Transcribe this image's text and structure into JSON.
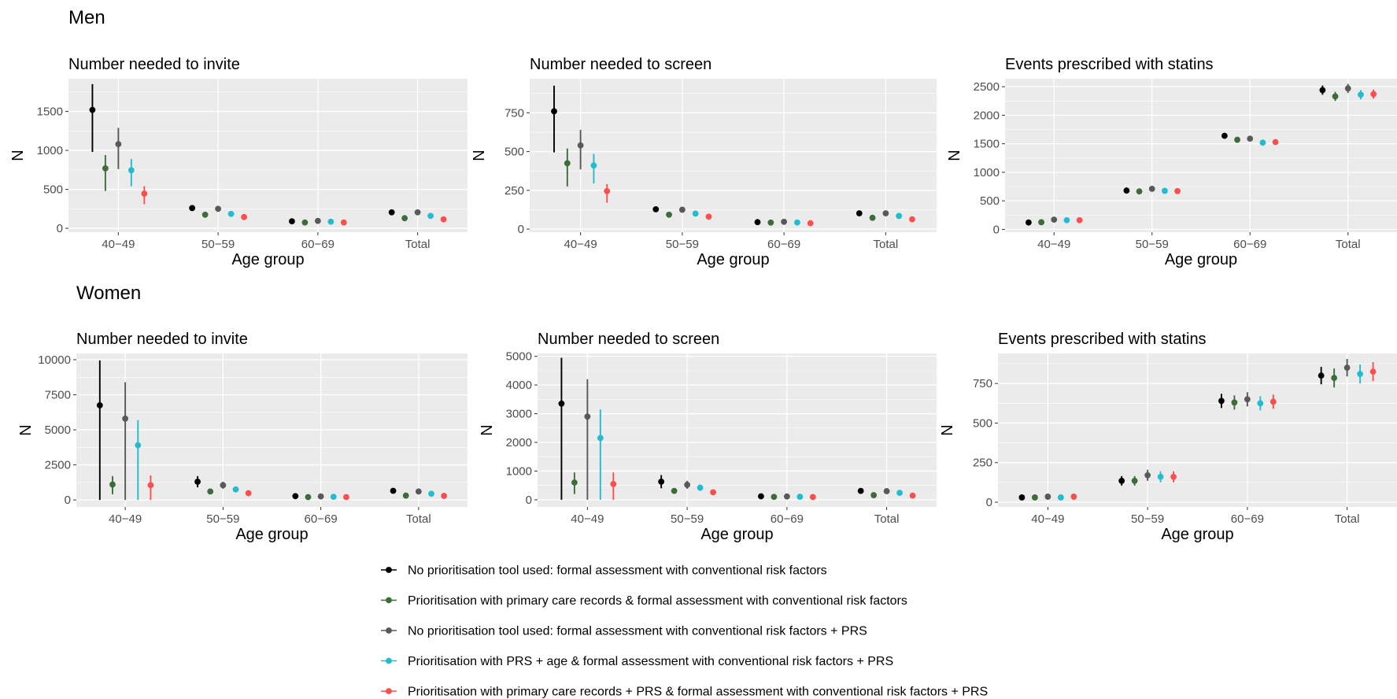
{
  "figure": {
    "sections": [
      {
        "title": "Men",
        "panels": [
          {
            "title": "Number needed to invite",
            "ylabel": "N",
            "xlabel": "Age group"
          },
          {
            "title": "Number needed to screen",
            "ylabel": "N",
            "xlabel": "Age group"
          },
          {
            "title": "Events prescribed with statins",
            "ylabel": "N",
            "xlabel": "Age group"
          }
        ]
      },
      {
        "title": "Women",
        "panels": [
          {
            "title": "Number needed to invite",
            "ylabel": "N",
            "xlabel": "Age group"
          },
          {
            "title": "Number needed to screen",
            "ylabel": "N",
            "xlabel": "Age group"
          },
          {
            "title": "Events prescribed with statins",
            "ylabel": "N",
            "xlabel": "Age group"
          }
        ]
      }
    ],
    "colors": {
      "panel_bg": "#ebebeb",
      "grid": "#ffffff",
      "series": [
        "#000000",
        "#3e6b3a",
        "#595959",
        "#23bccf",
        "#f8504d"
      ]
    },
    "legend": [
      "No prioritisation tool used: formal assessment with conventional risk factors",
      "Prioritisation with primary care records  & formal assessment with conventional risk factors",
      "No prioritisation tool used: formal assessment with conventional risk factors + PRS",
      "Prioritisation with PRS + age  & formal assessment with conventional risk factors + PRS",
      "Prioritisation with primary care records + PRS & formal assessment with conventional risk factors + PRS"
    ]
  },
  "chart_data": [
    {
      "type": "pointrange",
      "section": "Men",
      "title": "Number needed to invite",
      "xlabel": "Age group",
      "ylabel": "N",
      "categories": [
        "40−49",
        "50−59",
        "60−69",
        "Total"
      ],
      "ylim": [
        -50,
        1920
      ],
      "yticks": [
        0,
        500,
        1000,
        1500
      ],
      "series": [
        {
          "values": [
            1520,
            260,
            90,
            205
          ],
          "lower": [
            980,
            240,
            82,
            190
          ],
          "upper": [
            1850,
            280,
            98,
            220
          ]
        },
        {
          "values": [
            770,
            175,
            75,
            130
          ],
          "lower": [
            480,
            165,
            70,
            122
          ],
          "upper": [
            940,
            185,
            80,
            138
          ]
        },
        {
          "values": [
            1080,
            250,
            95,
            205
          ],
          "lower": [
            760,
            230,
            88,
            190
          ],
          "upper": [
            1290,
            270,
            102,
            220
          ]
        },
        {
          "values": [
            745,
            185,
            85,
            160
          ],
          "lower": [
            540,
            172,
            78,
            150
          ],
          "upper": [
            890,
            198,
            92,
            170
          ]
        },
        {
          "values": [
            445,
            145,
            75,
            115
          ],
          "lower": [
            310,
            135,
            70,
            108
          ],
          "upper": [
            540,
            155,
            80,
            122
          ]
        }
      ]
    },
    {
      "type": "pointrange",
      "section": "Men",
      "title": "Number needed to screen",
      "xlabel": "Age group",
      "ylabel": "N",
      "categories": [
        "40−49",
        "50−59",
        "60−69",
        "Total"
      ],
      "ylim": [
        -20,
        970
      ],
      "yticks": [
        0,
        250,
        500,
        750
      ],
      "series": [
        {
          "values": [
            760,
            128,
            45,
            102
          ],
          "lower": [
            495,
            120,
            41,
            95
          ],
          "upper": [
            925,
            136,
            49,
            109
          ]
        },
        {
          "values": [
            425,
            93,
            42,
            73
          ],
          "lower": [
            275,
            87,
            39,
            68
          ],
          "upper": [
            520,
            99,
            45,
            78
          ]
        },
        {
          "values": [
            540,
            125,
            47,
            102
          ],
          "lower": [
            385,
            115,
            43,
            95
          ],
          "upper": [
            640,
            135,
            51,
            109
          ]
        },
        {
          "values": [
            410,
            100,
            43,
            85
          ],
          "lower": [
            295,
            93,
            40,
            79
          ],
          "upper": [
            485,
            107,
            46,
            91
          ]
        },
        {
          "values": [
            245,
            80,
            38,
            63
          ],
          "lower": [
            170,
            74,
            35,
            58
          ],
          "upper": [
            290,
            86,
            41,
            68
          ]
        }
      ]
    },
    {
      "type": "pointrange",
      "section": "Men",
      "title": "Events prescribed with statins",
      "xlabel": "Age group",
      "ylabel": "N",
      "categories": [
        "40−49",
        "50−59",
        "60−69",
        "Total"
      ],
      "ylim": [
        -50,
        2640
      ],
      "yticks": [
        0,
        500,
        1000,
        1500,
        2000,
        2500
      ],
      "series": [
        {
          "values": [
            120,
            680,
            1640,
            2440
          ],
          "lower": [
            100,
            630,
            1600,
            2360
          ],
          "upper": [
            140,
            730,
            1680,
            2520
          ]
        },
        {
          "values": [
            125,
            665,
            1570,
            2330
          ],
          "lower": [
            105,
            615,
            1530,
            2250
          ],
          "upper": [
            145,
            715,
            1610,
            2410
          ]
        },
        {
          "values": [
            170,
            710,
            1590,
            2470
          ],
          "lower": [
            150,
            660,
            1550,
            2390
          ],
          "upper": [
            190,
            760,
            1630,
            2550
          ]
        },
        {
          "values": [
            160,
            675,
            1520,
            2360
          ],
          "lower": [
            140,
            625,
            1480,
            2280
          ],
          "upper": [
            180,
            725,
            1560,
            2440
          ]
        },
        {
          "values": [
            160,
            670,
            1530,
            2370
          ],
          "lower": [
            140,
            620,
            1490,
            2290
          ],
          "upper": [
            180,
            720,
            1570,
            2450
          ]
        }
      ]
    },
    {
      "type": "pointrange",
      "section": "Women",
      "title": "Number needed to invite",
      "xlabel": "Age group",
      "ylabel": "N",
      "categories": [
        "40−49",
        "50−59",
        "60−69",
        "Total"
      ],
      "ylim": [
        -500,
        10450
      ],
      "yticks": [
        0,
        2500,
        5000,
        7500,
        10000
      ],
      "series": [
        {
          "values": [
            6750,
            1300,
            270,
            650
          ],
          "lower": [
            0,
            900,
            220,
            560
          ],
          "upper": [
            9950,
            1700,
            320,
            740
          ]
        },
        {
          "values": [
            1100,
            600,
            200,
            310
          ],
          "lower": [
            400,
            480,
            170,
            270
          ],
          "upper": [
            1700,
            720,
            230,
            350
          ]
        },
        {
          "values": [
            5800,
            1050,
            250,
            600
          ],
          "lower": [
            0,
            800,
            210,
            520
          ],
          "upper": [
            8400,
            1300,
            290,
            680
          ]
        },
        {
          "values": [
            3900,
            750,
            220,
            440
          ],
          "lower": [
            0,
            560,
            185,
            385
          ],
          "upper": [
            5700,
            940,
            255,
            495
          ]
        },
        {
          "values": [
            1050,
            480,
            200,
            290
          ],
          "lower": [
            0,
            380,
            170,
            250
          ],
          "upper": [
            1750,
            580,
            230,
            330
          ]
        }
      ]
    },
    {
      "type": "pointrange",
      "section": "Women",
      "title": "Number needed to screen",
      "xlabel": "Age group",
      "ylabel": "N",
      "categories": [
        "40−49",
        "50−59",
        "60−69",
        "Total"
      ],
      "ylim": [
        -250,
        5100
      ],
      "yticks": [
        0,
        1000,
        2000,
        3000,
        4000,
        5000
      ],
      "series": [
        {
          "values": [
            3350,
            630,
            120,
            310
          ],
          "lower": [
            0,
            400,
            95,
            270
          ],
          "upper": [
            4950,
            860,
            145,
            350
          ]
        },
        {
          "values": [
            600,
            310,
            100,
            160
          ],
          "lower": [
            200,
            250,
            80,
            140
          ],
          "upper": [
            950,
            370,
            120,
            180
          ]
        },
        {
          "values": [
            2900,
            520,
            115,
            300
          ],
          "lower": [
            0,
            380,
            92,
            260
          ],
          "upper": [
            4200,
            660,
            138,
            340
          ]
        },
        {
          "values": [
            2150,
            420,
            105,
            240
          ],
          "lower": [
            0,
            310,
            85,
            210
          ],
          "upper": [
            3150,
            530,
            125,
            270
          ]
        },
        {
          "values": [
            550,
            260,
            95,
            145
          ],
          "lower": [
            0,
            200,
            75,
            125
          ],
          "upper": [
            950,
            320,
            115,
            165
          ]
        }
      ]
    },
    {
      "type": "pointrange",
      "section": "Women",
      "title": "Events prescribed with statins",
      "xlabel": "Age group",
      "ylabel": "N",
      "categories": [
        "40−49",
        "50−59",
        "60−69",
        "Total"
      ],
      "ylim": [
        -30,
        940
      ],
      "yticks": [
        0,
        250,
        500,
        750
      ],
      "series": [
        {
          "values": [
            30,
            135,
            640,
            800
          ],
          "lower": [
            15,
            105,
            595,
            745
          ],
          "upper": [
            45,
            165,
            685,
            855
          ]
        },
        {
          "values": [
            30,
            135,
            630,
            785
          ],
          "lower": [
            15,
            105,
            585,
            725
          ],
          "upper": [
            45,
            165,
            675,
            845
          ]
        },
        {
          "values": [
            35,
            170,
            650,
            850
          ],
          "lower": [
            15,
            135,
            605,
            795
          ],
          "upper": [
            55,
            205,
            695,
            905
          ]
        },
        {
          "values": [
            30,
            160,
            625,
            810
          ],
          "lower": [
            15,
            125,
            580,
            750
          ],
          "upper": [
            45,
            195,
            670,
            870
          ]
        },
        {
          "values": [
            35,
            160,
            635,
            825
          ],
          "lower": [
            15,
            125,
            590,
            765
          ],
          "upper": [
            55,
            195,
            680,
            885
          ]
        }
      ]
    }
  ]
}
